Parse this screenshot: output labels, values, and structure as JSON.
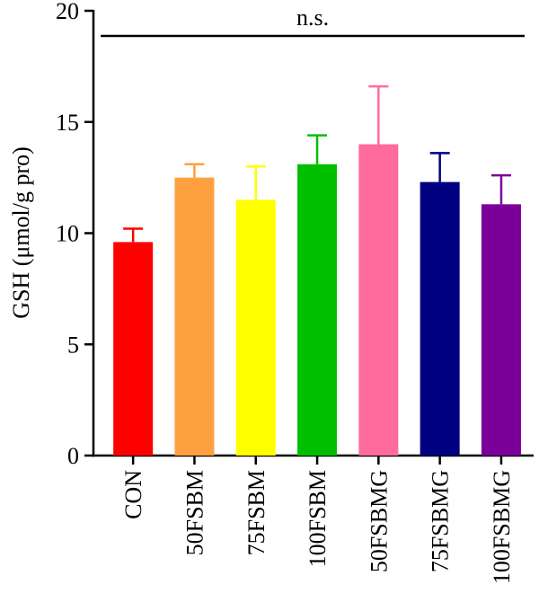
{
  "chart_data": {
    "type": "bar",
    "title": "",
    "xlabel": "",
    "ylabel": "GSH (μmol/g pro)",
    "ylim": [
      0,
      20
    ],
    "yticks": [
      0,
      5,
      10,
      15,
      20
    ],
    "grid": false,
    "categories": [
      "CON",
      "50FSBM",
      "75FSBM",
      "100FSBM",
      "50FSBMG",
      "75FSBMG",
      "100FSBMG"
    ],
    "values": [
      9.6,
      12.5,
      11.5,
      13.1,
      14.0,
      12.3,
      11.3
    ],
    "errors": [
      0.6,
      0.6,
      1.5,
      1.3,
      2.6,
      1.3,
      1.3
    ],
    "colors": [
      "#ff0000",
      "#ffa040",
      "#ffff00",
      "#00bf00",
      "#ff6b9c",
      "#000080",
      "#7b0099"
    ],
    "annotation": {
      "text": "n.s.",
      "span": [
        "CON",
        "100FSBMG"
      ]
    }
  }
}
